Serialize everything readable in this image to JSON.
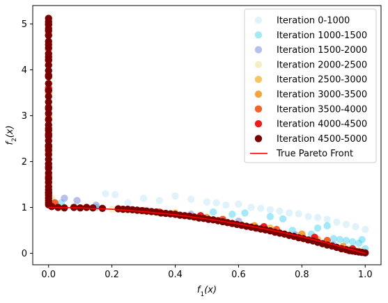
{
  "chart_data": {
    "type": "scatter",
    "title": "",
    "xlabel": "f_1(x)",
    "ylabel": "f_2(x)",
    "xlim": [
      -0.05,
      1.05
    ],
    "ylim": [
      -0.25,
      5.4
    ],
    "xticks": [
      0.0,
      0.2,
      0.4,
      0.6,
      0.8,
      1.0
    ],
    "xtick_labels": [
      "0.0",
      "0.2",
      "0.4",
      "0.6",
      "0.8",
      "1.0"
    ],
    "yticks": [
      0,
      1,
      2,
      3,
      4,
      5
    ],
    "ytick_labels": [
      "0",
      "1",
      "2",
      "3",
      "4",
      "5"
    ],
    "grid": false,
    "legend_position": "top-right",
    "series": [
      {
        "name": "Iteration 0-1000",
        "color": "#87ceeb",
        "alpha": 0.25,
        "x": [
          0.0,
          0.0,
          0.0,
          0.01,
          0.02,
          0.05,
          0.08,
          0.12,
          0.18,
          0.21,
          0.25,
          0.3,
          0.35,
          0.4,
          0.45,
          0.5,
          0.53,
          0.56,
          0.6,
          0.64,
          0.67,
          0.7,
          0.73,
          0.76,
          0.79,
          0.82,
          0.85,
          0.88,
          0.91,
          0.94,
          0.97,
          1.0
        ],
        "y": [
          4.2,
          3.0,
          1.9,
          1.15,
          1.05,
          1.02,
          1.0,
          1.0,
          1.3,
          1.28,
          1.1,
          1.2,
          1.15,
          1.25,
          1.18,
          1.12,
          1.1,
          1.05,
          1.07,
          1.0,
          0.98,
          0.95,
          0.92,
          0.88,
          0.86,
          0.8,
          0.78,
          0.74,
          0.68,
          0.63,
          0.58,
          0.52
        ]
      },
      {
        "name": "Iteration 1000-1500",
        "color": "#1ec8f0",
        "alpha": 0.4,
        "x": [
          0.0,
          0.0,
          0.0,
          0.04,
          0.15,
          0.25,
          0.35,
          0.45,
          0.52,
          0.58,
          0.62,
          0.66,
          0.7,
          0.74,
          0.77,
          0.8,
          0.83,
          0.85,
          0.88,
          0.9,
          0.92,
          0.94,
          0.96,
          0.98,
          0.99,
          1.0
        ],
        "y": [
          4.0,
          3.3,
          2.8,
          1.1,
          1.0,
          0.95,
          0.9,
          0.8,
          0.9,
          0.85,
          0.88,
          0.55,
          0.8,
          0.75,
          0.5,
          0.35,
          0.42,
          0.55,
          0.6,
          0.32,
          0.3,
          0.28,
          0.25,
          0.22,
          0.3,
          0.1
        ]
      },
      {
        "name": "Iteration 1500-2000",
        "color": "#6f7fd8",
        "alpha": 0.5,
        "x": [
          0.0,
          0.0,
          0.0,
          0.0,
          0.05,
          0.09,
          0.15,
          0.3,
          0.45,
          0.6,
          0.7,
          0.78,
          0.85,
          0.9
        ],
        "y": [
          2.5,
          2.2,
          1.4,
          1.2,
          1.2,
          1.15,
          1.05,
          0.93,
          0.85,
          0.7,
          0.5,
          0.4,
          0.25,
          0.18
        ]
      },
      {
        "name": "Iteration 2000-2500",
        "color": "#ece29a",
        "alpha": 0.55,
        "x": [
          0.0,
          0.0,
          0.0,
          0.01,
          0.1,
          0.2,
          0.35,
          0.5,
          0.65,
          0.8,
          0.95
        ],
        "y": [
          4.6,
          3.5,
          2.2,
          1.2,
          1.0,
          0.96,
          0.88,
          0.76,
          0.6,
          0.4,
          0.1
        ]
      },
      {
        "name": "Iteration 2500-3000",
        "color": "#f5b130",
        "alpha": 0.75,
        "x": [
          0.0,
          0.0,
          0.0,
          0.0,
          0.0,
          0.02,
          0.25,
          0.4,
          0.55,
          0.7,
          0.85,
          0.98
        ],
        "y": [
          4.8,
          3.2,
          2.6,
          1.95,
          1.65,
          1.05,
          0.95,
          0.88,
          0.74,
          0.55,
          0.3,
          0.05
        ]
      },
      {
        "name": "Iteration 3000-3500",
        "color": "#ef9a2a",
        "alpha": 0.9,
        "x": [
          0.0,
          0.0,
          0.0,
          0.0,
          0.01,
          0.3,
          0.5,
          0.65,
          0.8,
          0.93
        ],
        "y": [
          3.5,
          3.0,
          2.2,
          1.5,
          1.02,
          0.93,
          0.78,
          0.6,
          0.42,
          0.15
        ]
      },
      {
        "name": "Iteration 3500-4000",
        "color": "#f05a22",
        "alpha": 0.95,
        "x": [
          0.0,
          0.0,
          0.0,
          0.0,
          0.02,
          0.35,
          0.55,
          0.72,
          0.88
        ],
        "y": [
          4.45,
          2.9,
          1.7,
          1.3,
          1.1,
          0.9,
          0.74,
          0.52,
          0.28
        ]
      },
      {
        "name": "Iteration 4000-4500",
        "color": "#ee1c1c",
        "alpha": 1.0,
        "x": [
          0.0,
          0.0,
          0.0,
          0.0,
          0.0,
          0.28,
          0.48,
          0.68,
          0.84,
          0.96
        ],
        "y": [
          4.75,
          4.2,
          3.6,
          2.6,
          1.55,
          0.94,
          0.82,
          0.58,
          0.35,
          0.1
        ]
      },
      {
        "name": "Iteration 4500-5000",
        "color": "#7a0000",
        "alpha": 1.0,
        "x": [
          0.0,
          0.0,
          0.0,
          0.0,
          0.0,
          0.0,
          0.0,
          0.0,
          0.0,
          0.0,
          0.0,
          0.0,
          0.0,
          0.0,
          0.0,
          0.0,
          0.0,
          0.0,
          0.0,
          0.0,
          0.0,
          0.0,
          0.0,
          0.0,
          0.0,
          0.0,
          0.0,
          0.0,
          0.0,
          0.0,
          0.0,
          0.0,
          0.0,
          0.0,
          0.0,
          0.0,
          0.0,
          0.0,
          0.0,
          0.0,
          0.0,
          0.0,
          0.0,
          0.0,
          0.0,
          0.0,
          0.0,
          0.0,
          0.0,
          0.0,
          0.0,
          0.0,
          0.0,
          0.01,
          0.03,
          0.05,
          0.08,
          0.1,
          0.12,
          0.14,
          0.17,
          0.22,
          0.235,
          0.25,
          0.265,
          0.28,
          0.295,
          0.31,
          0.325,
          0.34,
          0.355,
          0.37,
          0.385,
          0.4,
          0.415,
          0.43,
          0.445,
          0.46,
          0.475,
          0.49,
          0.505,
          0.52,
          0.535,
          0.55,
          0.565,
          0.58,
          0.595,
          0.61,
          0.625,
          0.64,
          0.655,
          0.67,
          0.685,
          0.7,
          0.715,
          0.73,
          0.745,
          0.76,
          0.775,
          0.79,
          0.805,
          0.82,
          0.835,
          0.85,
          0.865,
          0.88,
          0.895,
          0.91,
          0.925,
          0.94,
          0.95,
          0.96,
          0.97,
          0.98,
          0.99,
          1.0
        ],
        "y": [
          5.12,
          5.05,
          4.98,
          4.9,
          4.75,
          4.62,
          4.48,
          4.35,
          4.22,
          4.1,
          3.98,
          3.85,
          3.7,
          3.55,
          3.42,
          3.3,
          3.18,
          3.05,
          2.92,
          2.8,
          2.68,
          2.55,
          2.45,
          2.35,
          2.25,
          2.15,
          2.05,
          1.95,
          1.85,
          1.75,
          1.65,
          1.55,
          1.45,
          1.38,
          1.32,
          1.26,
          1.2,
          1.15,
          1.1,
          1.06,
          5.0,
          4.85,
          4.55,
          4.28,
          3.88,
          3.55,
          3.15,
          2.72,
          2.58,
          2.32,
          1.88,
          1.62,
          1.32,
          1.02,
          1.0,
          0.99,
          1.0,
          0.99,
          1.0,
          0.99,
          0.98,
          0.97,
          0.96,
          0.96,
          0.95,
          0.94,
          0.93,
          0.92,
          0.91,
          0.9,
          0.88,
          0.87,
          0.86,
          0.85,
          0.83,
          0.82,
          0.81,
          0.79,
          0.77,
          0.76,
          0.74,
          0.73,
          0.71,
          0.69,
          0.67,
          0.65,
          0.63,
          0.61,
          0.59,
          0.57,
          0.55,
          0.53,
          0.51,
          0.49,
          0.46,
          0.44,
          0.42,
          0.39,
          0.37,
          0.34,
          0.32,
          0.29,
          0.27,
          0.24,
          0.21,
          0.18,
          0.16,
          0.13,
          0.1,
          0.08,
          0.06,
          0.05,
          0.04,
          0.03,
          0.02,
          0.01
        ]
      }
    ],
    "line": {
      "name": "True Pareto Front",
      "color": "#ff0000",
      "x": [
        0.0,
        0.1,
        0.2,
        0.3,
        0.4,
        0.5,
        0.6,
        0.7,
        0.8,
        0.9,
        1.0
      ],
      "y": [
        1.0,
        0.99,
        0.96,
        0.91,
        0.84,
        0.75,
        0.64,
        0.51,
        0.36,
        0.19,
        0.0
      ]
    }
  }
}
